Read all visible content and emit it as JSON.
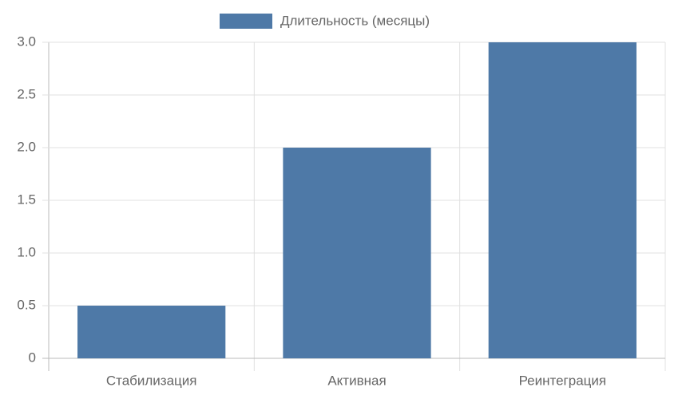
{
  "chart_data": {
    "type": "bar",
    "categories": [
      "Стабилизация",
      "Активная",
      "Реинтеграция"
    ],
    "series": [
      {
        "name": "Длительность (месяцы)",
        "color": "#4e79a7",
        "values": [
          0.5,
          2,
          3
        ]
      }
    ],
    "ylim": [
      0,
      3
    ],
    "yticks": [
      0,
      0.5,
      {
        "value": 1,
        "label": "1.0"
      },
      1.5,
      {
        "value": 2,
        "label": "2.0"
      },
      2.5,
      {
        "value": 3,
        "label": "3.0"
      }
    ],
    "grid": true,
    "legend": "top"
  }
}
